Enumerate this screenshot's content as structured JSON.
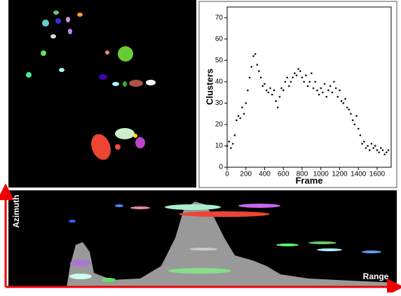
{
  "chart_data": {
    "type": "scatter",
    "x_label": "Frame",
    "y_label": "Clusters",
    "color": "#111111",
    "xlim": [
      0,
      1750
    ],
    "ylim": [
      0,
      75
    ],
    "xticks": [
      0,
      200,
      400,
      600,
      800,
      1000,
      1200,
      1400,
      1600
    ],
    "yticks": [
      0,
      10,
      20,
      30,
      40,
      50,
      60,
      70
    ],
    "x": [
      0,
      20,
      40,
      60,
      80,
      100,
      120,
      140,
      160,
      180,
      200,
      220,
      240,
      260,
      280,
      300,
      320,
      340,
      360,
      380,
      400,
      420,
      440,
      460,
      480,
      500,
      520,
      540,
      560,
      580,
      600,
      620,
      640,
      660,
      680,
      700,
      720,
      740,
      760,
      780,
      800,
      820,
      840,
      860,
      880,
      900,
      920,
      940,
      960,
      980,
      1000,
      1020,
      1040,
      1060,
      1080,
      1100,
      1120,
      1140,
      1160,
      1180,
      1200,
      1220,
      1240,
      1260,
      1280,
      1300,
      1320,
      1340,
      1360,
      1380,
      1400,
      1420,
      1440,
      1460,
      1480,
      1500,
      1520,
      1540,
      1560,
      1580,
      1600,
      1620,
      1640,
      1660,
      1680,
      1700,
      1720
    ],
    "values": [
      10,
      12,
      9,
      11,
      15,
      22,
      24,
      23,
      28,
      25,
      30,
      36,
      42,
      47,
      52,
      53,
      48,
      45,
      42,
      38,
      39,
      36,
      35,
      37,
      34,
      36,
      31,
      28,
      33,
      37,
      36,
      40,
      42,
      38,
      40,
      42,
      44,
      43,
      46,
      45,
      42,
      40,
      43,
      38,
      40,
      44,
      37,
      40,
      36,
      34,
      37,
      35,
      39,
      33,
      36,
      38,
      35,
      40,
      37,
      33,
      36,
      31,
      30,
      32,
      28,
      27,
      25,
      22,
      20,
      24,
      18,
      15,
      11,
      12,
      9,
      10,
      8,
      11,
      9,
      10,
      8,
      7,
      9,
      8,
      6,
      7,
      8
    ]
  },
  "radar_panel": {
    "y_label": "Azimuth",
    "x_label": "Range"
  }
}
